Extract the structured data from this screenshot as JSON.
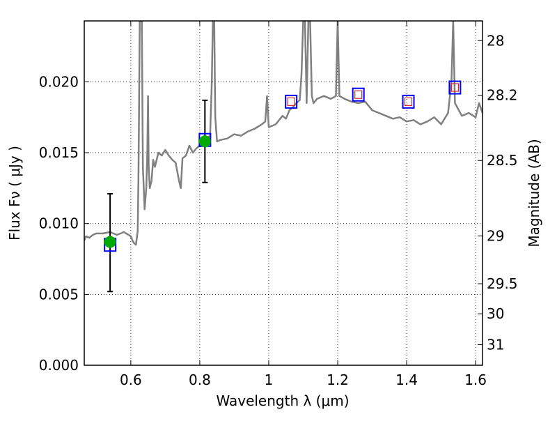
{
  "chart_data": {
    "type": "line",
    "xlabel": "Wavelength  λ (μm)",
    "ylabel_left": "Flux  Fν  ( μJy )",
    "ylabel_right": "Magnitude (AB)",
    "xlim": [
      0.465,
      1.62
    ],
    "ylim": [
      0.0,
      0.0243
    ],
    "grid": true,
    "x_ticks": [
      {
        "value": 0.6,
        "label": "0.6"
      },
      {
        "value": 0.8,
        "label": "0.8"
      },
      {
        "value": 1.0,
        "label": "1"
      },
      {
        "value": 1.2,
        "label": "1.2"
      },
      {
        "value": 1.4,
        "label": "1.4"
      },
      {
        "value": 1.6,
        "label": "1.6"
      }
    ],
    "y_ticks": [
      {
        "value": 0.0,
        "label": "0.000"
      },
      {
        "value": 0.005,
        "label": "0.005"
      },
      {
        "value": 0.01,
        "label": "0.010"
      },
      {
        "value": 0.015,
        "label": "0.015"
      },
      {
        "value": 0.02,
        "label": "0.020"
      }
    ],
    "right_ticks": [
      {
        "flux": 0.02291,
        "label": "28"
      },
      {
        "flux": 0.01905,
        "label": "28.2"
      },
      {
        "flux": 0.01445,
        "label": "28.5"
      },
      {
        "flux": 0.00912,
        "label": "29"
      },
      {
        "flux": 0.00575,
        "label": "29.5"
      },
      {
        "flux": 0.00363,
        "label": "30"
      },
      {
        "flux": 0.00145,
        "label": "31"
      }
    ],
    "series": [
      {
        "kind": "spectrum",
        "color": "#808080",
        "x": [
          0.465,
          0.47,
          0.48,
          0.49,
          0.5,
          0.52,
          0.54,
          0.56,
          0.58,
          0.6,
          0.605,
          0.61,
          0.615,
          0.62,
          0.622,
          0.624,
          0.626,
          0.628,
          0.63,
          0.632,
          0.635,
          0.64,
          0.645,
          0.648,
          0.65,
          0.652,
          0.655,
          0.66,
          0.665,
          0.67,
          0.68,
          0.69,
          0.7,
          0.71,
          0.72,
          0.73,
          0.74,
          0.745,
          0.75,
          0.76,
          0.77,
          0.78,
          0.79,
          0.8,
          0.81,
          0.82,
          0.83,
          0.835,
          0.838,
          0.84,
          0.842,
          0.845,
          0.85,
          0.86,
          0.88,
          0.9,
          0.92,
          0.94,
          0.96,
          0.98,
          0.99,
          0.995,
          1.0,
          1.02,
          1.04,
          1.05,
          1.06,
          1.07,
          1.08,
          1.09,
          1.095,
          1.1,
          1.105,
          1.11,
          1.115,
          1.12,
          1.125,
          1.13,
          1.14,
          1.16,
          1.18,
          1.195,
          1.2,
          1.205,
          1.22,
          1.24,
          1.26,
          1.28,
          1.3,
          1.32,
          1.34,
          1.36,
          1.38,
          1.4,
          1.42,
          1.44,
          1.46,
          1.48,
          1.5,
          1.52,
          1.53,
          1.535,
          1.54,
          1.56,
          1.58,
          1.6,
          1.61,
          1.62
        ],
        "y": [
          0.0088,
          0.0091,
          0.009,
          0.0092,
          0.0093,
          0.0093,
          0.0094,
          0.0092,
          0.0094,
          0.0091,
          0.0088,
          0.0086,
          0.0085,
          0.0095,
          0.013,
          0.018,
          0.0243,
          0.0243,
          0.0243,
          0.0243,
          0.014,
          0.011,
          0.0125,
          0.015,
          0.019,
          0.014,
          0.0125,
          0.013,
          0.0145,
          0.014,
          0.015,
          0.0148,
          0.0152,
          0.0148,
          0.0145,
          0.0143,
          0.013,
          0.0125,
          0.0146,
          0.0148,
          0.0155,
          0.015,
          0.0153,
          0.0155,
          0.0158,
          0.016,
          0.0162,
          0.02,
          0.0243,
          0.0243,
          0.0243,
          0.0175,
          0.0158,
          0.0159,
          0.016,
          0.0163,
          0.0162,
          0.0165,
          0.0167,
          0.017,
          0.0172,
          0.019,
          0.0168,
          0.017,
          0.0176,
          0.0174,
          0.018,
          0.0182,
          0.0185,
          0.0187,
          0.0205,
          0.0243,
          0.0243,
          0.0185,
          0.0243,
          0.0243,
          0.019,
          0.0185,
          0.0188,
          0.019,
          0.0188,
          0.019,
          0.0243,
          0.019,
          0.0188,
          0.0186,
          0.0185,
          0.0186,
          0.018,
          0.0178,
          0.0176,
          0.0174,
          0.0175,
          0.0172,
          0.0173,
          0.017,
          0.0172,
          0.0175,
          0.017,
          0.0178,
          0.02,
          0.0243,
          0.0185,
          0.0176,
          0.0178,
          0.0175,
          0.0185,
          0.0178
        ]
      },
      {
        "kind": "photometry-measured",
        "color": "#00aa00",
        "x": [
          0.54,
          0.815
        ],
        "y": [
          0.0087,
          0.0158
        ],
        "yerr_low": [
          0.0052,
          0.0129
        ],
        "yerr_high": [
          0.0121,
          0.0187
        ]
      },
      {
        "kind": "model-synthetic",
        "marker": "blue-open-square",
        "color": "#0000ff",
        "x": [
          0.54,
          0.815,
          1.065,
          1.26,
          1.405,
          1.54
        ],
        "y": [
          0.0085,
          0.0159,
          0.0186,
          0.0191,
          0.0186,
          0.0196
        ]
      },
      {
        "kind": "model-upper",
        "marker": "red-open-square",
        "color": "#dd2222",
        "x": [
          1.065,
          1.26,
          1.405,
          1.54
        ],
        "y": [
          0.0186,
          0.0191,
          0.0186,
          0.0196
        ]
      }
    ]
  }
}
